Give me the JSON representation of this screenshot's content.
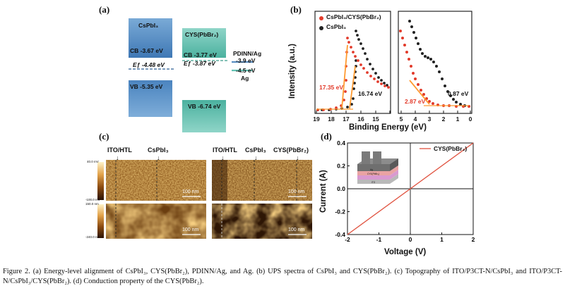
{
  "panel_a": {
    "label": "(a)",
    "materials": [
      {
        "name": "CsPbI₃",
        "cb": "CB -3.67 eV",
        "vb": "VB -5.35 eV",
        "ef": "Eƒ -4.48 eV"
      },
      {
        "name": "CYS(PbBr₂)",
        "cb": "CB -3.77 eV",
        "vb": "VB -6.74 eV",
        "ef": "Eƒ -3.87 eV"
      }
    ],
    "pdinn_label": "PDINN/Ag",
    "pdinn_level": "-3.9 eV",
    "ag_level": "-4.5 eV",
    "ag_label": "Ag",
    "colors": {
      "blue": "#5b8fc3",
      "teal": "#63c2b3",
      "ef_line": "#2f5f94"
    }
  },
  "panel_b": {
    "label": "(b)",
    "ylabel": "Intensity (a.u.)",
    "xlabel": "Binding Energy (eV)",
    "legend": [
      "CsPbI₃/CYS(PbBr₂)",
      "CsPbI₃"
    ],
    "annotations": {
      "red_cutoff": "17.35 eV",
      "black_cutoff": "16.74 eV",
      "red_onset": "2.87 eV",
      "black_onset": "0.87 eV"
    },
    "colors": {
      "red": "#e23b2b",
      "black": "#222222",
      "orange": "#ff9a30"
    }
  },
  "panel_c": {
    "label": "(c)",
    "left_labels": [
      "ITO/HTL",
      "CsPbI₃"
    ],
    "right_labels": [
      "ITO/HTL",
      "CsPbI₃",
      "CYS(PbBr₂)"
    ],
    "scalebars": [
      "100 nm",
      "100 nm",
      "100 nm",
      "100 nm"
    ],
    "colorbar_top": [
      "40.0 mV",
      "-100.0 mV"
    ],
    "colorbar_bottom": [
      "150.0 nm",
      "-240.0 nm"
    ]
  },
  "chart_data": {
    "type": "line",
    "panel_label": "(d)",
    "title": "",
    "xlabel": "Voltage (V)",
    "ylabel": "Current (A)",
    "xlim": [
      -2,
      2
    ],
    "ylim": [
      -0.4,
      0.4
    ],
    "xticks": [
      -2,
      -1,
      0,
      1,
      2
    ],
    "yticks": [
      -0.4,
      -0.2,
      0.0,
      0.2,
      0.4
    ],
    "series": [
      {
        "name": "CYS(PbBr₂)",
        "color": "#e0523f",
        "x": [
          -2,
          2
        ],
        "y": [
          -0.4,
          0.4
        ]
      }
    ],
    "inset": {
      "layers": [
        "Ag",
        "CYS(PbBr₂)",
        "ITO"
      ]
    }
  },
  "caption": {
    "text": "Figure 2. (a) Energy-level alignment of CsPbI₃, CYS(PbBr₂), PDINN/Ag, and Ag. (b) UPS spectra of CsPbI₃ and CYS(PbBr₂). (c) Topography of ITO/P3CT-N/CsPbI₃ and ITO/P3CT-N/CsPbI₃/CYS(PbBr₂). (d) Conduction property of the CYS(PbBr₂)."
  }
}
